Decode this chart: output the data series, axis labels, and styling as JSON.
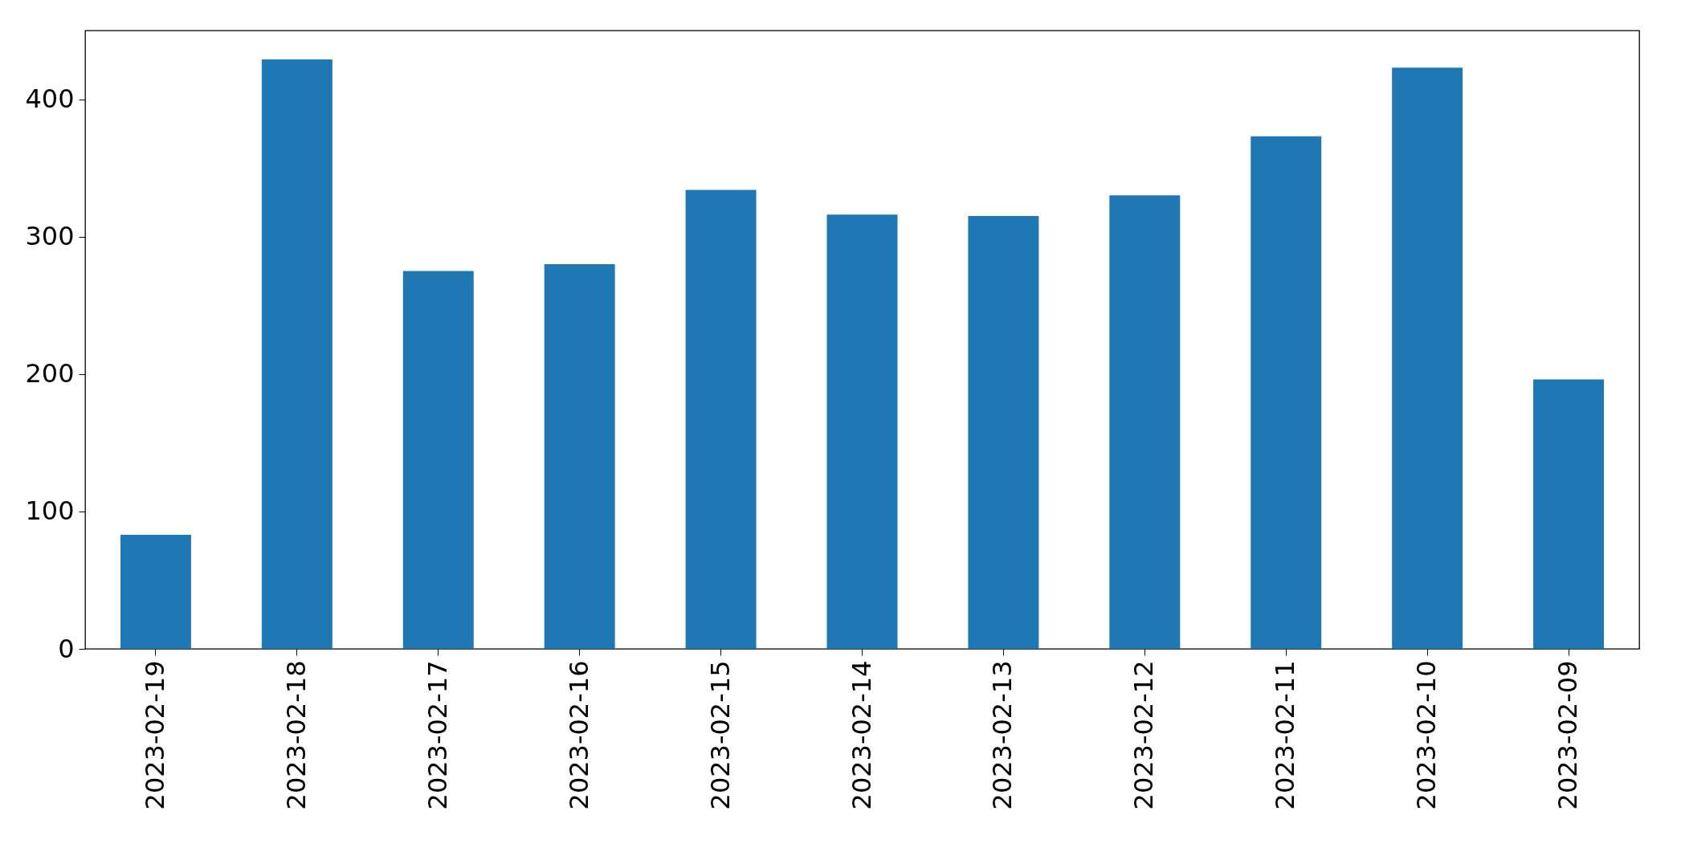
{
  "chart_data": {
    "type": "bar",
    "categories": [
      "2023-02-19",
      "2023-02-18",
      "2023-02-17",
      "2023-02-16",
      "2023-02-15",
      "2023-02-14",
      "2023-02-13",
      "2023-02-12",
      "2023-02-11",
      "2023-02-10",
      "2023-02-09"
    ],
    "values": [
      83,
      429,
      275,
      280,
      334,
      316,
      315,
      330,
      373,
      423,
      196
    ],
    "color": "#1f77b4",
    "ylim": [
      0,
      450
    ],
    "yticks": [
      0,
      100,
      200,
      300,
      400
    ],
    "grid": false
  }
}
